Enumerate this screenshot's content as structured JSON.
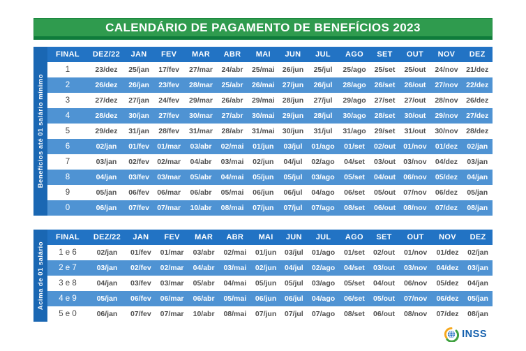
{
  "title": "CALENDÁRIO DE PAGAMENTO DE BENEFÍCIOS 2023",
  "columns": [
    "FINAL",
    "DEZ/22",
    "JAN",
    "FEV",
    "MAR",
    "ABR",
    "MAI",
    "JUN",
    "JUL",
    "AGO",
    "SET",
    "OUT",
    "NOV",
    "DEZ"
  ],
  "tables": [
    {
      "sidebar_label": "Benefícios até 01 salário mínimo",
      "rows": [
        {
          "final": "1",
          "dates": [
            "23/dez",
            "25/jan",
            "17/fev",
            "27/mar",
            "24/abr",
            "25/mai",
            "26/jun",
            "25/jul",
            "25/ago",
            "25/set",
            "25/out",
            "24/nov",
            "21/dez"
          ]
        },
        {
          "final": "2",
          "dates": [
            "26/dez",
            "26/jan",
            "23/fev",
            "28/mar",
            "25/abr",
            "26/mai",
            "27/jun",
            "26/jul",
            "28/ago",
            "26/set",
            "26/out",
            "27/nov",
            "22/dez"
          ]
        },
        {
          "final": "3",
          "dates": [
            "27/dez",
            "27/jan",
            "24/fev",
            "29/mar",
            "26/abr",
            "29/mai",
            "28/jun",
            "27/jul",
            "29/ago",
            "27/set",
            "27/out",
            "28/nov",
            "26/dez"
          ]
        },
        {
          "final": "4",
          "dates": [
            "28/dez",
            "30/jan",
            "27/fev",
            "30/mar",
            "27/abr",
            "30/mai",
            "29/jun",
            "28/jul",
            "30/ago",
            "28/set",
            "30/out",
            "29/nov",
            "27/dez"
          ]
        },
        {
          "final": "5",
          "dates": [
            "29/dez",
            "31/jan",
            "28/fev",
            "31/mar",
            "28/abr",
            "31/mai",
            "30/jun",
            "31/jul",
            "31/ago",
            "29/set",
            "31/out",
            "30/nov",
            "28/dez"
          ]
        },
        {
          "final": "6",
          "dates": [
            "02/jan",
            "01/fev",
            "01/mar",
            "03/abr",
            "02/mai",
            "01/jun",
            "03/jul",
            "01/ago",
            "01/set",
            "02/out",
            "01/nov",
            "01/dez",
            "02/jan"
          ]
        },
        {
          "final": "7",
          "dates": [
            "03/jan",
            "02/fev",
            "02/mar",
            "04/abr",
            "03/mai",
            "02/jun",
            "04/jul",
            "02/ago",
            "04/set",
            "03/out",
            "03/nov",
            "04/dez",
            "03/jan"
          ]
        },
        {
          "final": "8",
          "dates": [
            "04/jan",
            "03/fev",
            "03/mar",
            "05/abr",
            "04/mai",
            "05/jun",
            "05/jul",
            "03/ago",
            "05/set",
            "04/out",
            "06/nov",
            "05/dez",
            "04/jan"
          ]
        },
        {
          "final": "9",
          "dates": [
            "05/jan",
            "06/fev",
            "06/mar",
            "06/abr",
            "05/mai",
            "06/jun",
            "06/jul",
            "04/ago",
            "06/set",
            "05/out",
            "07/nov",
            "06/dez",
            "05/jan"
          ]
        },
        {
          "final": "0",
          "dates": [
            "06/jan",
            "07/fev",
            "07/mar",
            "10/abr",
            "08/mai",
            "07/jun",
            "07/jul",
            "07/ago",
            "08/set",
            "06/out",
            "08/nov",
            "07/dez",
            "08/jan"
          ]
        }
      ]
    },
    {
      "sidebar_label": "Acima de 01 salário",
      "rows": [
        {
          "final": "1 e 6",
          "dates": [
            "02/jan",
            "01/fev",
            "01/mar",
            "03/abr",
            "02/mai",
            "01/jun",
            "03/jul",
            "01/ago",
            "01/set",
            "02/out",
            "01/nov",
            "01/dez",
            "02/jan"
          ]
        },
        {
          "final": "2 e 7",
          "dates": [
            "03/jan",
            "02/fev",
            "02/mar",
            "04/abr",
            "03/mai",
            "02/jun",
            "04/jul",
            "02/ago",
            "04/set",
            "03/out",
            "03/nov",
            "04/dez",
            "03/jan"
          ]
        },
        {
          "final": "3 e 8",
          "dates": [
            "04/jan",
            "03/fev",
            "03/mar",
            "05/abr",
            "04/mai",
            "05/jun",
            "05/jul",
            "03/ago",
            "05/set",
            "04/out",
            "06/nov",
            "05/dez",
            "04/jan"
          ]
        },
        {
          "final": "4 e 9",
          "dates": [
            "05/jan",
            "06/fev",
            "06/mar",
            "06/abr",
            "05/mai",
            "06/jun",
            "06/jul",
            "04/ago",
            "06/set",
            "05/out",
            "07/nov",
            "06/dez",
            "05/jan"
          ]
        },
        {
          "final": "5 e 0",
          "dates": [
            "06/jan",
            "07/fev",
            "07/mar",
            "10/abr",
            "08/mai",
            "07/jun",
            "07/jul",
            "07/ago",
            "08/set",
            "06/out",
            "08/nov",
            "07/dez",
            "08/jan"
          ]
        }
      ]
    }
  ],
  "footer": {
    "logo_text": "INSS"
  },
  "colors": {
    "banner_green": "#2f9b4e",
    "banner_green_dark": "#0f7c3b",
    "header_blue": "#2273c4",
    "alt_row_blue": "#4f93d3",
    "sidebar_blue": "#1a67b3",
    "inss_blue": "#1460ae",
    "logo_green": "#3fa13f",
    "logo_yellow": "#f6a81c"
  }
}
